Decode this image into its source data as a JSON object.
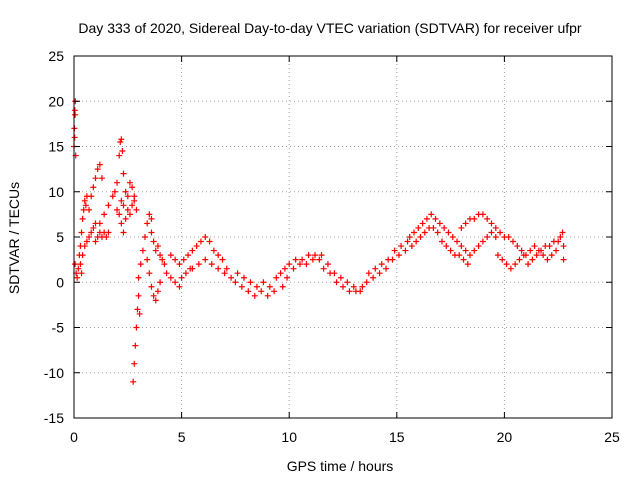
{
  "chart_data": {
    "type": "scatter",
    "title": "Day 333 of 2020, Sidereal Day-to-day VTEC variation (SDTVAR) for receiver ufpr",
    "xlabel": "GPS time / hours",
    "ylabel": "SDTVAR / TECUs",
    "xlim": [
      0,
      25
    ],
    "ylim": [
      -15,
      25
    ],
    "x_ticks": [
      0,
      5,
      10,
      15,
      20,
      25
    ],
    "y_ticks": [
      -15,
      -10,
      -5,
      0,
      5,
      10,
      15,
      20,
      25
    ],
    "x_tick_labels": [
      "0",
      "5",
      "10",
      "15",
      "20",
      "25"
    ],
    "y_tick_labels": [
      "-15",
      "-10",
      "-5",
      "0",
      "5",
      "10",
      "15",
      "20",
      "25"
    ],
    "grid": true,
    "marker": "+",
    "color": "#ff0000",
    "series": [
      {
        "name": "SDTVAR",
        "points": [
          [
            0.0,
            15.0
          ],
          [
            0.02,
            17.0
          ],
          [
            0.04,
            19.0
          ],
          [
            0.06,
            20.0
          ],
          [
            0.03,
            16.0
          ],
          [
            0.05,
            18.5
          ],
          [
            0.08,
            14.0
          ],
          [
            0.05,
            2.0
          ],
          [
            0.1,
            1.0
          ],
          [
            0.15,
            0.5
          ],
          [
            0.2,
            1.5
          ],
          [
            0.25,
            3.0
          ],
          [
            0.3,
            2.0
          ],
          [
            0.35,
            1.0
          ],
          [
            0.3,
            4.0
          ],
          [
            0.35,
            5.5
          ],
          [
            0.4,
            7.0
          ],
          [
            0.45,
            8.0
          ],
          [
            0.5,
            9.0
          ],
          [
            0.55,
            8.5
          ],
          [
            0.6,
            9.5
          ],
          [
            0.4,
            3.0
          ],
          [
            0.5,
            4.0
          ],
          [
            0.6,
            4.5
          ],
          [
            0.7,
            5.0
          ],
          [
            0.8,
            5.5
          ],
          [
            0.9,
            6.0
          ],
          [
            1.0,
            6.5
          ],
          [
            0.7,
            8.0
          ],
          [
            0.8,
            9.5
          ],
          [
            0.9,
            10.5
          ],
          [
            1.0,
            11.5
          ],
          [
            1.1,
            12.5
          ],
          [
            1.2,
            13.0
          ],
          [
            1.3,
            11.5
          ],
          [
            1.0,
            4.5
          ],
          [
            1.1,
            5.0
          ],
          [
            1.2,
            5.5
          ],
          [
            1.3,
            5.0
          ],
          [
            1.4,
            5.5
          ],
          [
            1.5,
            5.0
          ],
          [
            1.6,
            5.5
          ],
          [
            1.2,
            6.5
          ],
          [
            1.4,
            7.5
          ],
          [
            1.6,
            8.5
          ],
          [
            1.8,
            9.5
          ],
          [
            1.9,
            10.0
          ],
          [
            2.0,
            11.0
          ],
          [
            2.1,
            14.0
          ],
          [
            2.15,
            15.5
          ],
          [
            2.2,
            15.8
          ],
          [
            2.25,
            14.5
          ],
          [
            2.3,
            12.0
          ],
          [
            2.0,
            8.0
          ],
          [
            2.1,
            7.5
          ],
          [
            2.2,
            9.0
          ],
          [
            2.3,
            8.5
          ],
          [
            2.4,
            10.0
          ],
          [
            2.5,
            9.5
          ],
          [
            2.6,
            11.0
          ],
          [
            2.7,
            10.5
          ],
          [
            2.8,
            9.0
          ],
          [
            2.9,
            8.0
          ],
          [
            2.2,
            6.5
          ],
          [
            2.3,
            5.5
          ],
          [
            2.4,
            7.0
          ],
          [
            2.5,
            8.0
          ],
          [
            2.6,
            7.5
          ],
          [
            2.7,
            8.5
          ],
          [
            2.8,
            9.5
          ],
          [
            2.75,
            -11.0
          ],
          [
            2.8,
            -9.0
          ],
          [
            2.85,
            -7.0
          ],
          [
            2.9,
            -5.0
          ],
          [
            2.95,
            -3.0
          ],
          [
            3.0,
            -1.5
          ],
          [
            3.05,
            -3.5
          ],
          [
            3.0,
            0.5
          ],
          [
            3.1,
            2.0
          ],
          [
            3.2,
            3.5
          ],
          [
            3.3,
            5.0
          ],
          [
            3.4,
            6.5
          ],
          [
            3.5,
            7.5
          ],
          [
            3.6,
            7.0
          ],
          [
            3.4,
            2.5
          ],
          [
            3.5,
            1.0
          ],
          [
            3.6,
            -0.5
          ],
          [
            3.7,
            -1.5
          ],
          [
            3.8,
            -2.0
          ],
          [
            3.9,
            -1.0
          ],
          [
            4.0,
            0.0
          ],
          [
            3.6,
            5.5
          ],
          [
            3.7,
            4.5
          ],
          [
            3.8,
            3.5
          ],
          [
            3.9,
            4.0
          ],
          [
            4.0,
            3.0
          ],
          [
            4.1,
            2.5
          ],
          [
            4.2,
            2.0
          ],
          [
            4.3,
            1.0
          ],
          [
            4.5,
            0.5
          ],
          [
            4.7,
            0.0
          ],
          [
            4.9,
            -0.5
          ],
          [
            5.0,
            0.5
          ],
          [
            5.2,
            1.0
          ],
          [
            5.4,
            1.5
          ],
          [
            4.5,
            3.0
          ],
          [
            4.7,
            2.5
          ],
          [
            4.9,
            2.0
          ],
          [
            5.1,
            2.5
          ],
          [
            5.3,
            3.0
          ],
          [
            5.5,
            3.5
          ],
          [
            5.7,
            4.0
          ],
          [
            5.9,
            4.5
          ],
          [
            6.1,
            5.0
          ],
          [
            6.3,
            4.5
          ],
          [
            6.5,
            3.5
          ],
          [
            6.7,
            3.0
          ],
          [
            6.9,
            2.5
          ],
          [
            7.1,
            1.5
          ],
          [
            5.5,
            1.5
          ],
          [
            5.8,
            2.0
          ],
          [
            6.1,
            2.5
          ],
          [
            6.4,
            2.0
          ],
          [
            6.7,
            1.5
          ],
          [
            7.0,
            1.0
          ],
          [
            7.3,
            0.5
          ],
          [
            7.5,
            0.0
          ],
          [
            7.8,
            -0.5
          ],
          [
            8.1,
            -1.0
          ],
          [
            8.4,
            -1.5
          ],
          [
            8.7,
            -1.0
          ],
          [
            9.0,
            -1.5
          ],
          [
            9.3,
            -1.0
          ],
          [
            7.6,
            1.0
          ],
          [
            7.9,
            0.5
          ],
          [
            8.2,
            0.0
          ],
          [
            8.5,
            -0.5
          ],
          [
            8.8,
            0.0
          ],
          [
            9.1,
            -0.5
          ],
          [
            9.4,
            0.5
          ],
          [
            9.6,
            1.0
          ],
          [
            9.8,
            1.5
          ],
          [
            10.0,
            2.0
          ],
          [
            10.3,
            2.5
          ],
          [
            10.6,
            2.5
          ],
          [
            10.9,
            3.0
          ],
          [
            11.2,
            3.0
          ],
          [
            9.7,
            -0.5
          ],
          [
            9.9,
            0.5
          ],
          [
            10.2,
            1.5
          ],
          [
            10.5,
            2.0
          ],
          [
            10.8,
            2.0
          ],
          [
            11.1,
            2.5
          ],
          [
            11.4,
            2.5
          ],
          [
            11.5,
            3.0
          ],
          [
            11.8,
            2.0
          ],
          [
            12.1,
            1.0
          ],
          [
            12.4,
            0.5
          ],
          [
            12.7,
            0.0
          ],
          [
            13.0,
            -0.5
          ],
          [
            13.3,
            -1.0
          ],
          [
            11.6,
            1.5
          ],
          [
            11.9,
            1.0
          ],
          [
            12.2,
            0.0
          ],
          [
            12.5,
            -0.5
          ],
          [
            12.8,
            -1.0
          ],
          [
            13.1,
            -1.0
          ],
          [
            13.4,
            -0.5
          ],
          [
            13.6,
            0.0
          ],
          [
            13.9,
            0.5
          ],
          [
            14.2,
            1.0
          ],
          [
            14.5,
            1.5
          ],
          [
            14.8,
            2.5
          ],
          [
            15.1,
            3.0
          ],
          [
            15.4,
            3.5
          ],
          [
            13.7,
            1.0
          ],
          [
            14.0,
            1.5
          ],
          [
            14.3,
            2.0
          ],
          [
            14.6,
            2.5
          ],
          [
            14.9,
            3.5
          ],
          [
            15.2,
            4.0
          ],
          [
            15.5,
            4.5
          ],
          [
            15.6,
            5.0
          ],
          [
            15.8,
            5.5
          ],
          [
            16.0,
            6.0
          ],
          [
            16.2,
            6.5
          ],
          [
            16.4,
            7.0
          ],
          [
            16.6,
            7.5
          ],
          [
            16.8,
            7.0
          ],
          [
            15.7,
            4.0
          ],
          [
            15.9,
            4.5
          ],
          [
            16.1,
            5.0
          ],
          [
            16.3,
            5.5
          ],
          [
            16.5,
            6.0
          ],
          [
            16.7,
            6.0
          ],
          [
            16.9,
            5.5
          ],
          [
            17.0,
            6.5
          ],
          [
            17.2,
            6.0
          ],
          [
            17.4,
            5.5
          ],
          [
            17.6,
            5.0
          ],
          [
            17.8,
            4.5
          ],
          [
            18.0,
            4.0
          ],
          [
            18.2,
            3.5
          ],
          [
            17.1,
            4.5
          ],
          [
            17.3,
            4.0
          ],
          [
            17.5,
            3.5
          ],
          [
            17.7,
            3.0
          ],
          [
            17.9,
            3.0
          ],
          [
            18.1,
            2.5
          ],
          [
            18.3,
            2.0
          ],
          [
            18.0,
            6.0
          ],
          [
            18.2,
            6.5
          ],
          [
            18.4,
            7.0
          ],
          [
            18.6,
            7.0
          ],
          [
            18.8,
            7.5
          ],
          [
            19.0,
            7.5
          ],
          [
            19.2,
            7.0
          ],
          [
            18.4,
            3.0
          ],
          [
            18.6,
            3.5
          ],
          [
            18.8,
            4.0
          ],
          [
            19.0,
            4.5
          ],
          [
            19.2,
            5.0
          ],
          [
            19.4,
            5.5
          ],
          [
            19.6,
            5.0
          ],
          [
            19.4,
            6.5
          ],
          [
            19.6,
            6.0
          ],
          [
            19.8,
            5.5
          ],
          [
            20.0,
            5.0
          ],
          [
            20.2,
            5.0
          ],
          [
            20.4,
            4.5
          ],
          [
            20.6,
            4.0
          ],
          [
            19.7,
            3.0
          ],
          [
            19.9,
            2.5
          ],
          [
            20.1,
            2.0
          ],
          [
            20.3,
            1.5
          ],
          [
            20.5,
            2.0
          ],
          [
            20.7,
            2.5
          ],
          [
            20.9,
            3.0
          ],
          [
            20.8,
            3.5
          ],
          [
            21.0,
            3.0
          ],
          [
            21.2,
            3.5
          ],
          [
            21.4,
            4.0
          ],
          [
            21.6,
            3.5
          ],
          [
            21.8,
            3.0
          ],
          [
            22.0,
            2.5
          ],
          [
            21.1,
            2.0
          ],
          [
            21.3,
            2.5
          ],
          [
            21.5,
            3.0
          ],
          [
            21.7,
            3.5
          ],
          [
            21.9,
            4.0
          ],
          [
            22.1,
            4.0
          ],
          [
            22.3,
            4.5
          ],
          [
            22.2,
            3.0
          ],
          [
            22.4,
            3.5
          ],
          [
            22.5,
            4.5
          ],
          [
            22.6,
            5.0
          ],
          [
            22.7,
            5.5
          ],
          [
            22.75,
            4.0
          ],
          [
            22.75,
            2.5
          ]
        ]
      }
    ]
  }
}
